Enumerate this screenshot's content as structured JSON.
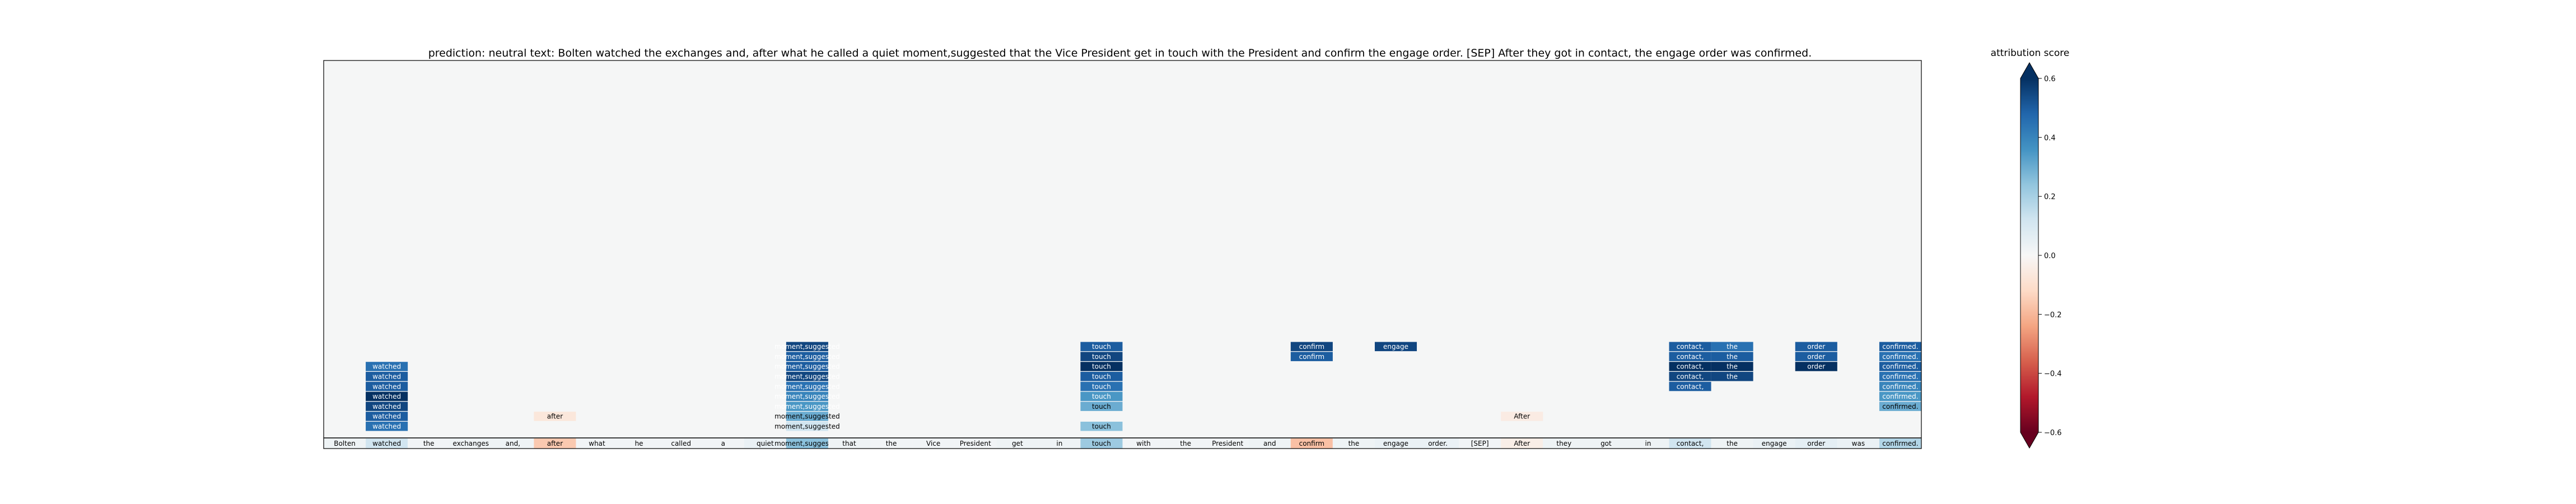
{
  "chart_data": {
    "type": "heatmap",
    "title": "prediction:  neutral     text:  Bolten watched the exchanges and, after what he called a quiet moment,suggested that the Vice President get in touch with the President and confirm the engage order. [SEP] After they got in contact, the engage order was confirmed.",
    "tokens": [
      "Bolten",
      "watched",
      "the",
      "exchanges",
      "and,",
      "after",
      "what",
      "he",
      "called",
      "a",
      "quiet",
      "moment,suggested",
      "that",
      "the",
      "Vice",
      "President",
      "get",
      "in",
      "touch",
      "with",
      "the",
      "President",
      "and",
      "confirm",
      "the",
      "engage",
      "order.",
      "[SEP]",
      "After",
      "they",
      "got",
      "in",
      "contact,",
      "the",
      "engage",
      "order",
      "was",
      "confirmed."
    ],
    "base_row": [
      0.03,
      0.12,
      0.02,
      0.03,
      0.03,
      -0.16,
      0.02,
      0.02,
      0.02,
      0.02,
      0.04,
      0.25,
      0.03,
      0.02,
      0.02,
      0.02,
      0.03,
      0.03,
      0.22,
      0.02,
      0.02,
      0.02,
      0.03,
      -0.18,
      0.03,
      0.04,
      0.04,
      0.02,
      -0.04,
      0.03,
      0.03,
      0.03,
      0.12,
      0.03,
      0.04,
      0.06,
      0.04,
      0.18
    ],
    "cells": [
      {
        "token": "watched",
        "row": 1,
        "value": 0.45
      },
      {
        "token": "watched",
        "row": 2,
        "value": 0.5
      },
      {
        "token": "watched",
        "row": 3,
        "value": 0.55
      },
      {
        "token": "watched",
        "row": 4,
        "value": 0.6
      },
      {
        "token": "watched",
        "row": 5,
        "value": 0.5
      },
      {
        "token": "watched",
        "row": 6,
        "value": 0.5
      },
      {
        "token": "watched",
        "row": 7,
        "value": 0.45
      },
      {
        "token": "after",
        "row": 2,
        "value": -0.07
      },
      {
        "token": "moment,suggested",
        "row": 1,
        "value": 0.12
      },
      {
        "token": "moment,suggested",
        "row": 2,
        "value": 0.3
      },
      {
        "token": "moment,suggested",
        "row": 3,
        "value": 0.35
      },
      {
        "token": "moment,suggested",
        "row": 4,
        "value": 0.4
      },
      {
        "token": "moment,suggested",
        "row": 5,
        "value": 0.45
      },
      {
        "token": "moment,suggested",
        "row": 6,
        "value": 0.55
      },
      {
        "token": "moment,suggested",
        "row": 7,
        "value": 0.5
      },
      {
        "token": "moment,suggested",
        "row": 8,
        "value": 0.5
      },
      {
        "token": "moment,suggested",
        "row": 9,
        "value": 0.55
      },
      {
        "token": "touch",
        "row": 1,
        "value": 0.25
      },
      {
        "token": "touch",
        "row": 3,
        "value": 0.3
      },
      {
        "token": "touch",
        "row": 4,
        "value": 0.35
      },
      {
        "token": "touch",
        "row": 5,
        "value": 0.45
      },
      {
        "token": "touch",
        "row": 6,
        "value": 0.5
      },
      {
        "token": "touch",
        "row": 7,
        "value": 0.6
      },
      {
        "token": "touch",
        "row": 8,
        "value": 0.55
      },
      {
        "token": "touch",
        "row": 9,
        "value": 0.5
      },
      {
        "token": "confirm",
        "row": 8,
        "value": 0.5
      },
      {
        "token": "confirm",
        "row": 9,
        "value": 0.55
      },
      {
        "token": "engage",
        "row": 9,
        "value": 0.55
      },
      {
        "token": "After",
        "row": 2,
        "value": -0.05
      },
      {
        "token": "contact,",
        "row": 5,
        "value": 0.5
      },
      {
        "token": "contact,",
        "row": 6,
        "value": 0.55
      },
      {
        "token": "contact,",
        "row": 7,
        "value": 0.6
      },
      {
        "token": "contact,",
        "row": 8,
        "value": 0.5
      },
      {
        "token": "contact,",
        "row": 9,
        "value": 0.5
      },
      {
        "token": "the",
        "row": 6,
        "value": 0.55
      },
      {
        "token": "the",
        "row": 7,
        "value": 0.6
      },
      {
        "token": "the",
        "row": 8,
        "value": 0.5
      },
      {
        "token": "the",
        "row": 9,
        "value": 0.45
      },
      {
        "token": "order",
        "row": 7,
        "value": 0.6
      },
      {
        "token": "order",
        "row": 8,
        "value": 0.5
      },
      {
        "token": "order",
        "row": 9,
        "value": 0.5
      },
      {
        "token": "confirmed.",
        "row": 3,
        "value": 0.3
      },
      {
        "token": "confirmed.",
        "row": 4,
        "value": 0.35
      },
      {
        "token": "confirmed.",
        "row": 5,
        "value": 0.4
      },
      {
        "token": "confirmed.",
        "row": 6,
        "value": 0.45
      },
      {
        "token": "confirmed.",
        "row": 7,
        "value": 0.5
      },
      {
        "token": "confirmed.",
        "row": 8,
        "value": 0.45
      },
      {
        "token": "confirmed.",
        "row": 9,
        "value": 0.5
      }
    ],
    "colorbar": {
      "title": "attribution score",
      "range": [
        -0.6,
        0.6
      ],
      "ticks": [
        0.6,
        0.4,
        0.2,
        0.0,
        -0.2,
        -0.4,
        -0.6
      ],
      "tick_labels": [
        "0.6",
        "0.4",
        "0.2",
        "0.0",
        "−0.2",
        "−0.4",
        "−0.6"
      ],
      "colormap": "RdBu"
    },
    "background_color": "#f5f6f6",
    "grid": false
  }
}
